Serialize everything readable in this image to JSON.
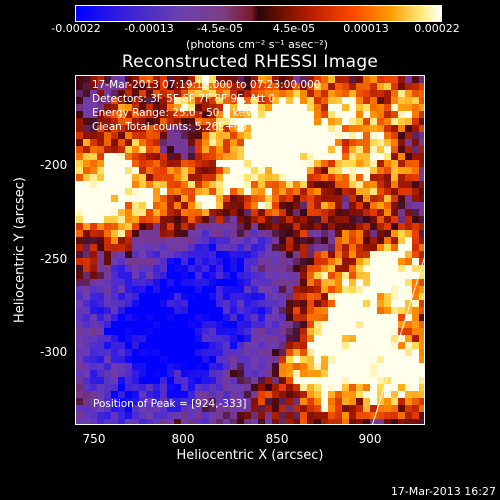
{
  "colorbar": {
    "ticks": [
      "-0.00022",
      "-0.00013",
      "-4.5e-05",
      "4.5e-05",
      "0.00013",
      "0.00022"
    ],
    "unit": "(photons cm⁻² s⁻¹ asec⁻²)"
  },
  "title": "Reconstructed RHESSI Image",
  "info": {
    "time": "17-Mar-2013 07:19:12.000 to 07:23:00.000",
    "detectors": "Detectors: 3F 5F 6F 7F 8F 9F, Att 0",
    "energy": "Energy Range: 25.0 - 50.0 keV",
    "clean": "Clean     Total counts: 5.26E+03"
  },
  "peak": "Position of Peak = [924,-333]",
  "axes": {
    "xlabel": "Heliocentric X (arcsec)",
    "ylabel": "Heliocentric Y (arcsec)",
    "xticks": [
      "750",
      "800",
      "850",
      "900"
    ],
    "yticks": [
      "-200",
      "-250",
      "-300"
    ]
  },
  "timestamp": "17-Mar-2013 16:27"
}
